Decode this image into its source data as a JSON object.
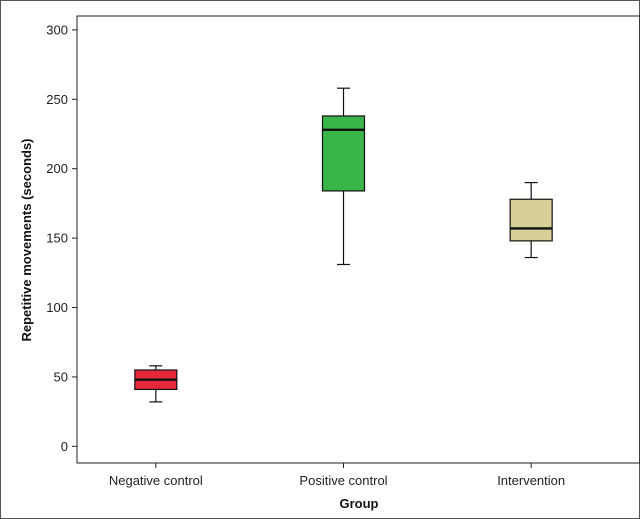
{
  "chart_data": {
    "type": "box",
    "title": "",
    "xlabel": "Group",
    "ylabel": "Repetitive movements (seconds)",
    "ylim": [
      -12,
      310
    ],
    "yticks": [
      0,
      50,
      100,
      150,
      200,
      250,
      300
    ],
    "grid": false,
    "legend": "none",
    "categories": [
      "Negative control",
      "Positive control",
      "Intervention"
    ],
    "boxes": [
      {
        "category": "Negative control",
        "min": 32,
        "q1": 41,
        "median": 48,
        "q3": 55,
        "max": 58,
        "color": "#e5283a"
      },
      {
        "category": "Positive control",
        "min": 131,
        "q1": 184,
        "median": 228,
        "q3": 238,
        "max": 258,
        "color": "#3ab54a"
      },
      {
        "category": "Intervention",
        "min": 136,
        "q1": 148,
        "median": 157,
        "q3": 178,
        "max": 190,
        "color": "#d6cf98"
      }
    ]
  }
}
